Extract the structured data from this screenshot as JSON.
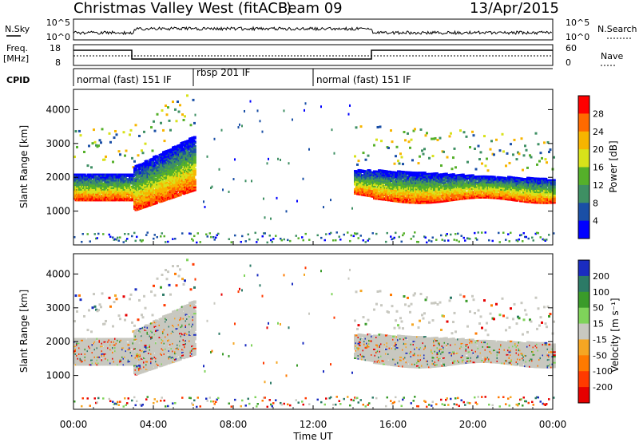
{
  "header": {
    "title": "Christmas Valley West (fitACF)",
    "beam": "Beam 09",
    "date": "13/Apr/2015"
  },
  "panels": {
    "nsky": {
      "left_label": "N.Sky",
      "right_label": "N.Search",
      "tick_top": "10^5",
      "tick_bottom": "10^0"
    },
    "freq": {
      "left_label": "Freq.",
      "unit": "[MHz]",
      "right_label": "Nave",
      "tick_top": "18",
      "tick_bottom": "8",
      "right_tick_top": "60",
      "right_tick_bottom": "0"
    },
    "cpid": {
      "label": "CPID",
      "segments": [
        {
          "text": "normal (fast) 151 IF",
          "start_hour": 0
        },
        {
          "text": "rbsp 201 IF",
          "start_hour": 6
        },
        {
          "text": "normal (fast) 151 IF",
          "start_hour": 12
        }
      ]
    }
  },
  "chart_data": [
    {
      "type": "heatmap",
      "title": "",
      "xlabel": "Time UT",
      "ylabel": "Slant Range [km]",
      "xlim": [
        0,
        24
      ],
      "ylim": [
        0,
        4600
      ],
      "x_ticks": [
        "00:00",
        "04:00",
        "08:00",
        "12:00",
        "16:00",
        "20:00",
        "00:00"
      ],
      "y_ticks": [
        1000,
        2000,
        3000,
        4000
      ],
      "colorbar": {
        "label": "Power [dB]",
        "ticks": [
          "28",
          "24",
          "20",
          "16",
          "12",
          "8",
          "4"
        ],
        "colors": [
          "#ff0000",
          "#ff6a00",
          "#f7b500",
          "#d8e21a",
          "#55b02a",
          "#3e8f63",
          "#1a4fa6",
          "#0000ff"
        ]
      }
    },
    {
      "type": "heatmap",
      "title": "",
      "xlabel": "Time UT",
      "ylabel": "Slant Range [km]",
      "xlim": [
        0,
        24
      ],
      "ylim": [
        0,
        4600
      ],
      "x_ticks": [
        "00:00",
        "04:00",
        "08:00",
        "12:00",
        "16:00",
        "20:00",
        "00:00"
      ],
      "y_ticks": [
        1000,
        2000,
        3000,
        4000
      ],
      "colorbar": {
        "label": "Velocity [m s⁻¹]",
        "ticks": [
          "200",
          "100",
          "50",
          "15",
          "-15",
          "-50",
          "-100",
          "-200"
        ],
        "colors": [
          "#1a2cc0",
          "#2c7a66",
          "#3a9b2a",
          "#7fd35a",
          "#c8c8c0",
          "#f5a623",
          "#ff7a00",
          "#ff3a00",
          "#e60000"
        ]
      }
    }
  ],
  "colors": {
    "axis": "#000000",
    "ground": "#c8c8c0"
  }
}
